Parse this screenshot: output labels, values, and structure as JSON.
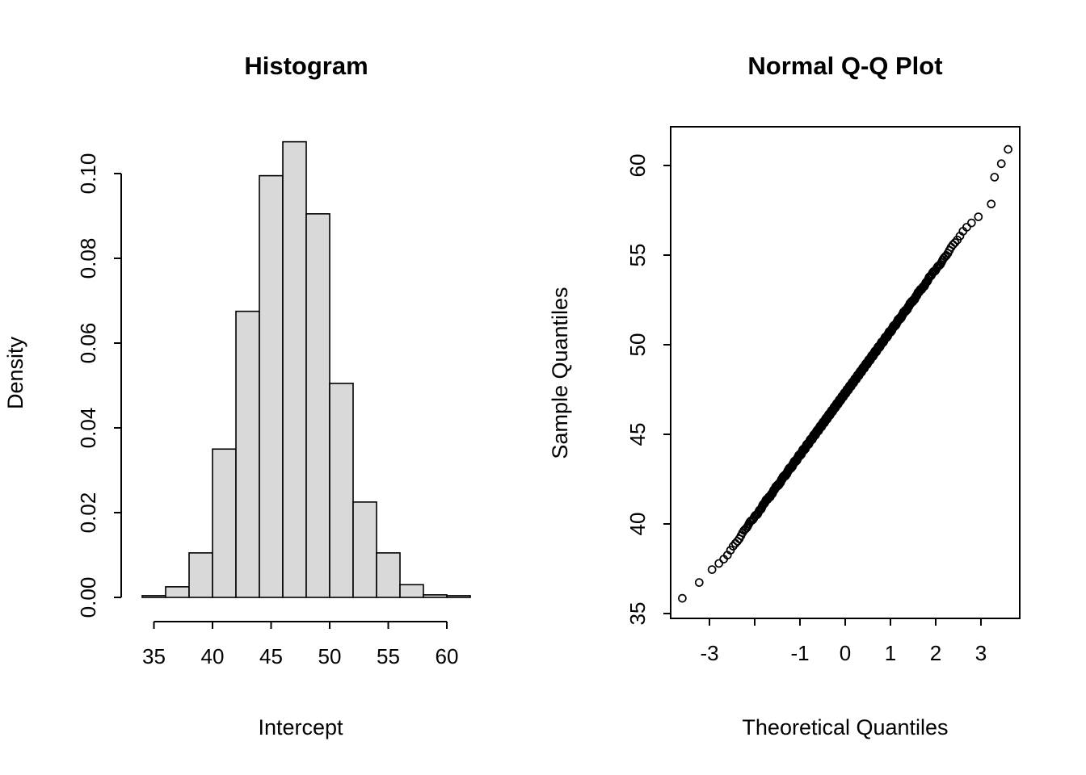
{
  "figure": {
    "background": "#ffffff",
    "text_color": "#000000"
  },
  "chart_data": [
    {
      "type": "bar",
      "title": "Histogram",
      "xlabel": "Intercept",
      "ylabel": "Density",
      "xlim": [
        34,
        62
      ],
      "ylim": [
        0,
        0.11
      ],
      "grid": false,
      "bar_fill": "#d9d9d9",
      "bar_stroke": "#000000",
      "x_ticks": [
        {
          "value": 35,
          "label": "35"
        },
        {
          "value": 40,
          "label": "40"
        },
        {
          "value": 45,
          "label": "45"
        },
        {
          "value": 50,
          "label": "50"
        },
        {
          "value": 55,
          "label": "55"
        },
        {
          "value": 60,
          "label": "60"
        }
      ],
      "y_ticks": [
        {
          "value": 0.0,
          "label": "0.00"
        },
        {
          "value": 0.02,
          "label": "0.02"
        },
        {
          "value": 0.04,
          "label": "0.04"
        },
        {
          "value": 0.06,
          "label": "0.06"
        },
        {
          "value": 0.08,
          "label": "0.08"
        },
        {
          "value": 0.1,
          "label": "0.10"
        }
      ],
      "bins": [
        {
          "from": 34,
          "to": 36,
          "density": 0.0004
        },
        {
          "from": 36,
          "to": 38,
          "density": 0.0025
        },
        {
          "from": 38,
          "to": 40,
          "density": 0.0105
        },
        {
          "from": 40,
          "to": 42,
          "density": 0.035
        },
        {
          "from": 42,
          "to": 44,
          "density": 0.0675
        },
        {
          "from": 44,
          "to": 46,
          "density": 0.0995
        },
        {
          "from": 46,
          "to": 48,
          "density": 0.1075
        },
        {
          "from": 48,
          "to": 50,
          "density": 0.0905
        },
        {
          "from": 50,
          "to": 52,
          "density": 0.0505
        },
        {
          "from": 52,
          "to": 54,
          "density": 0.0225
        },
        {
          "from": 54,
          "to": 56,
          "density": 0.0105
        },
        {
          "from": 56,
          "to": 58,
          "density": 0.003
        },
        {
          "from": 58,
          "to": 60,
          "density": 0.0006
        },
        {
          "from": 60,
          "to": 62,
          "density": 0.0004
        }
      ]
    },
    {
      "type": "scatter",
      "title": "Normal Q-Q Plot",
      "xlabel": "Theoretical Quantiles",
      "ylabel": "Sample Quantiles",
      "xlim": [
        -3.86,
        3.86
      ],
      "ylim": [
        34.7,
        62.2
      ],
      "grid": false,
      "point_style": "open-circle",
      "point_color": "#000000",
      "x_ticks": [
        -3,
        -2,
        -1,
        0,
        1,
        2,
        3
      ],
      "x_tick_labels": [
        {
          "value": -3,
          "label": "-3"
        },
        {
          "value": -1,
          "label": "-1"
        },
        {
          "value": 0,
          "label": "0"
        },
        {
          "value": 1,
          "label": "1"
        },
        {
          "value": 2,
          "label": "2"
        },
        {
          "value": 3,
          "label": "3"
        }
      ],
      "y_ticks": [
        {
          "value": 35,
          "label": "35"
        },
        {
          "value": 40,
          "label": "40"
        },
        {
          "value": 45,
          "label": "45"
        },
        {
          "value": 50,
          "label": "50"
        },
        {
          "value": 55,
          "label": "55"
        },
        {
          "value": 60,
          "label": "60"
        }
      ],
      "sample_model": {
        "n": 1000,
        "mean": 47.3,
        "sd": 3.45,
        "tail_soften_start": 2.6,
        "tail_soften_factor": 0.75,
        "x_range": [
          -3.22,
          3.22
        ],
        "y_range": [
          35.9,
          60.9
        ]
      },
      "extra_points": [
        [
          -3.6,
          35.85
        ],
        [
          3.3,
          59.35
        ],
        [
          3.45,
          60.1
        ],
        [
          3.6,
          60.9
        ]
      ]
    }
  ]
}
